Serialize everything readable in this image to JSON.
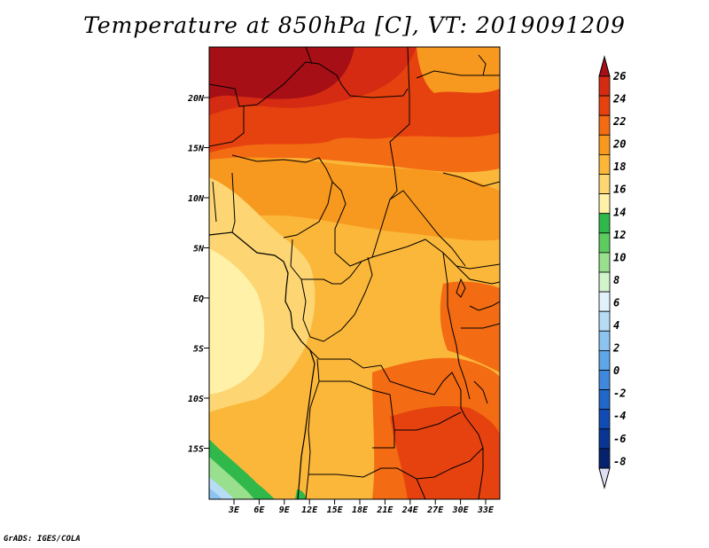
{
  "title": "Temperature at 850hPa [C], VT: 2019091209",
  "credit": "GrADS: IGES/COLA",
  "map": {
    "lat_labels": [
      "20N",
      "15N",
      "10N",
      "5N",
      "EQ",
      "5S",
      "10S",
      "15S"
    ],
    "lon_labels": [
      "3E",
      "6E",
      "9E",
      "12E",
      "15E",
      "18E",
      "21E",
      "24E",
      "27E",
      "30E",
      "33E"
    ],
    "lon_range_deg": [
      0,
      35
    ],
    "lat_range_deg": [
      -20,
      25
    ]
  },
  "colorbar": {
    "labels": [
      "26",
      "24",
      "22",
      "20",
      "18",
      "16",
      "14",
      "12",
      "10",
      "8",
      "6",
      "4",
      "2",
      "0",
      "-2",
      "-4",
      "-6",
      "-8"
    ],
    "colors": [
      "#a50f15",
      "#d42b12",
      "#e6420f",
      "#f36b12",
      "#f8991f",
      "#fbb73a",
      "#fdd673",
      "#fff1a8",
      "#30b84a",
      "#5ecb5e",
      "#98df8e",
      "#d2f4cb",
      "#e2f2fb",
      "#b7dcf6",
      "#8cc3f0",
      "#5fa6e8",
      "#3f88db",
      "#2167c9",
      "#114bb4",
      "#093593",
      "#06226d"
    ],
    "top_arrow_color": "#a50f15",
    "bottom_arrow_color": "#e0e0f5"
  }
}
